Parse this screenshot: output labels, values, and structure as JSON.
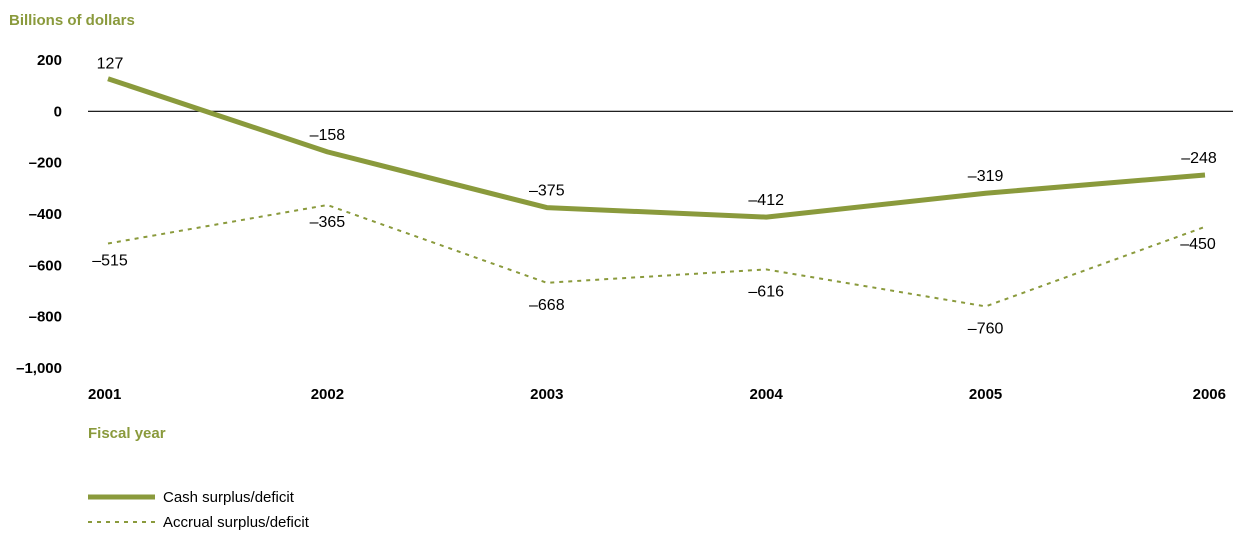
{
  "colors": {
    "series": "#8a9a3c",
    "axis_title": "#8a9a3c",
    "zero_line": "#000000",
    "text": "#000000"
  },
  "chart_data": {
    "type": "line",
    "ylabel": "Billions of dollars",
    "xlabel": "Fiscal year",
    "x": [
      "2001",
      "2002",
      "2003",
      "2004",
      "2005",
      "2006"
    ],
    "ylim": [
      -1000,
      200
    ],
    "yticks": [
      200,
      0,
      -200,
      -400,
      -600,
      -800,
      -1000
    ],
    "ytick_labels": [
      "200",
      "0",
      "–200",
      "–400",
      "–600",
      "–800",
      "–1,000"
    ],
    "grid": false,
    "legend_placement": "bottom-left",
    "series": [
      {
        "name": "Cash surplus/deficit",
        "style": "solid",
        "values": [
          127,
          -158,
          -375,
          -412,
          -319,
          -248
        ],
        "labels": [
          "127",
          "–158",
          "–375",
          "–412",
          "–319",
          "–248"
        ]
      },
      {
        "name": "Accrual surplus/deficit",
        "style": "dotted",
        "values": [
          -515,
          -365,
          -668,
          -616,
          -760,
          -450
        ],
        "labels": [
          "–515",
          "–365",
          "–668",
          "–616",
          "–760",
          "–450"
        ]
      }
    ]
  }
}
